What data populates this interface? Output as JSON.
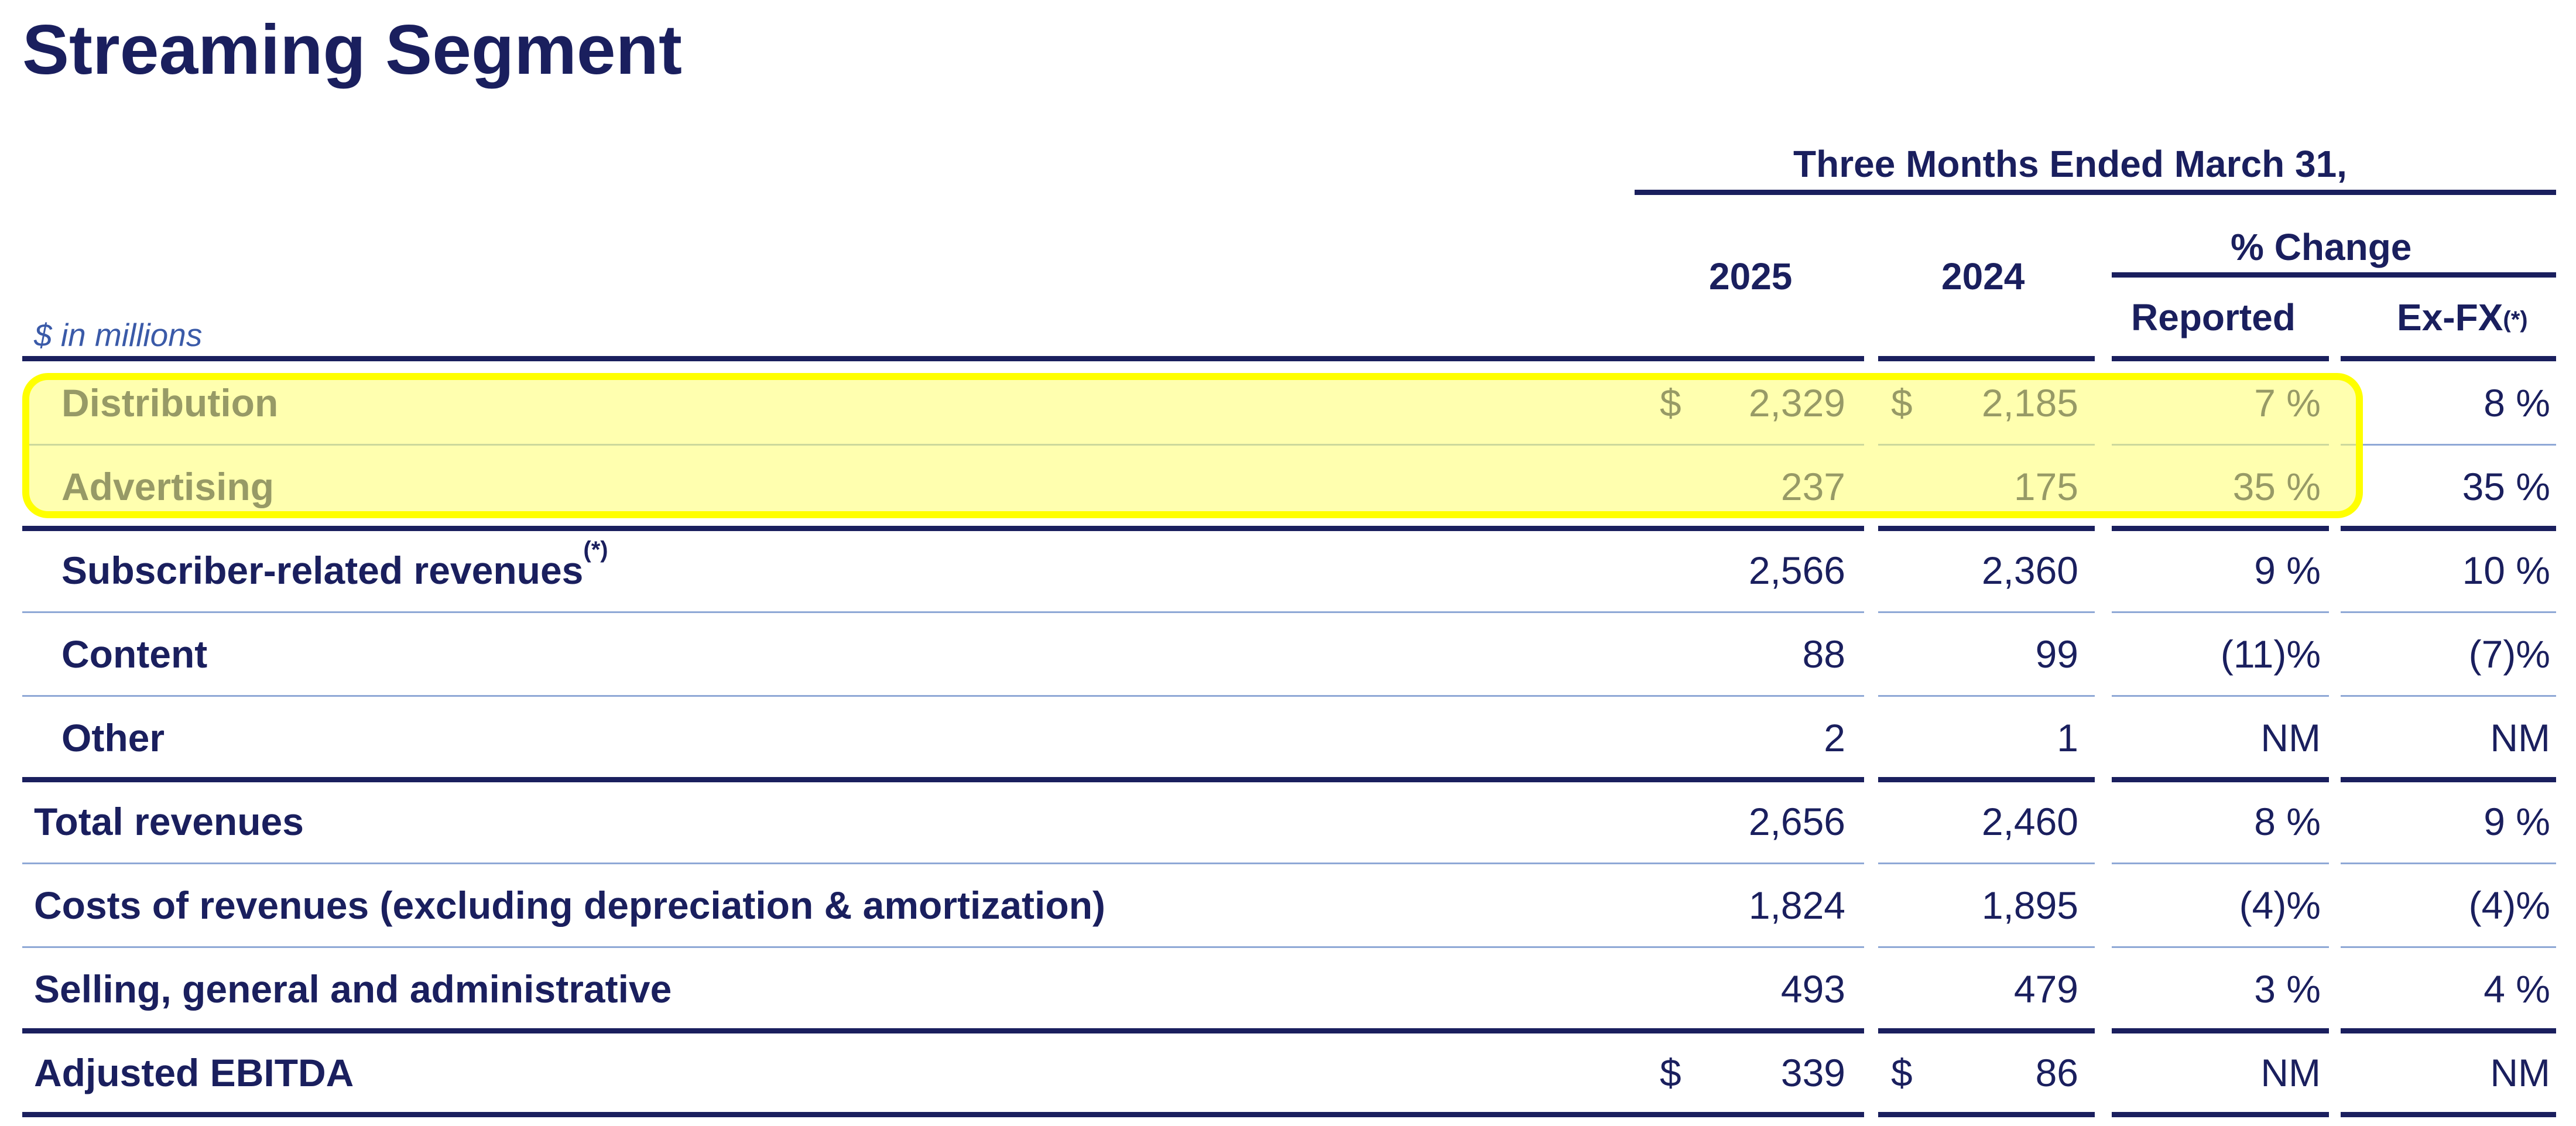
{
  "title": "Streaming Segment",
  "header": {
    "period": "Three Months Ended March 31,",
    "col_2025": "2025",
    "col_2024": "2024",
    "pct_change": "% Change",
    "reported": "Reported",
    "exfx": "Ex-FX",
    "exfx_note": "(*)"
  },
  "unit_note": "$ in millions",
  "rows": [
    {
      "label": "Distribution",
      "note": "",
      "dollar_2025": "$",
      "v2025": "2,329",
      "dollar_2024": "$",
      "v2024": "2,185",
      "reported": "7 %",
      "exfx": "8 %",
      "indent": true
    },
    {
      "label": "Advertising",
      "note": "",
      "dollar_2025": "",
      "v2025": "237",
      "dollar_2024": "",
      "v2024": "175",
      "reported": "35 %",
      "exfx": "35 %",
      "indent": true
    },
    {
      "label": "Subscriber-related revenues",
      "note": "(*)",
      "dollar_2025": "",
      "v2025": "2,566",
      "dollar_2024": "",
      "v2024": "2,360",
      "reported": "9 %",
      "exfx": "10 %",
      "indent": true
    },
    {
      "label": "Content",
      "note": "",
      "dollar_2025": "",
      "v2025": "88",
      "dollar_2024": "",
      "v2024": "99",
      "reported": "(11)%",
      "exfx": "(7)%",
      "indent": true
    },
    {
      "label": "Other",
      "note": "",
      "dollar_2025": "",
      "v2025": "2",
      "dollar_2024": "",
      "v2024": "1",
      "reported": "NM",
      "exfx": "NM",
      "indent": true
    },
    {
      "label": "Total revenues",
      "note": "",
      "dollar_2025": "",
      "v2025": "2,656",
      "dollar_2024": "",
      "v2024": "2,460",
      "reported": "8 %",
      "exfx": "9 %",
      "indent": false
    },
    {
      "label": "Costs of revenues (excluding depreciation & amortization)",
      "note": "",
      "dollar_2025": "",
      "v2025": "1,824",
      "dollar_2024": "",
      "v2024": "1,895",
      "reported": "(4)%",
      "exfx": "(4)%",
      "indent": false
    },
    {
      "label": "Selling, general and administrative",
      "note": "",
      "dollar_2025": "",
      "v2025": "493",
      "dollar_2024": "",
      "v2024": "479",
      "reported": "3 %",
      "exfx": "4 %",
      "indent": false
    },
    {
      "label": "Adjusted EBITDA",
      "note": "",
      "dollar_2025": "$",
      "v2025": "339",
      "dollar_2024": "$",
      "v2024": "86",
      "reported": "NM",
      "exfx": "NM",
      "indent": false
    }
  ],
  "colors": {
    "text": "#1a1f5e",
    "thin_rule": "#8fa8d6",
    "highlight_border": "#ffff00",
    "highlight_fill": "#ffff9a"
  }
}
